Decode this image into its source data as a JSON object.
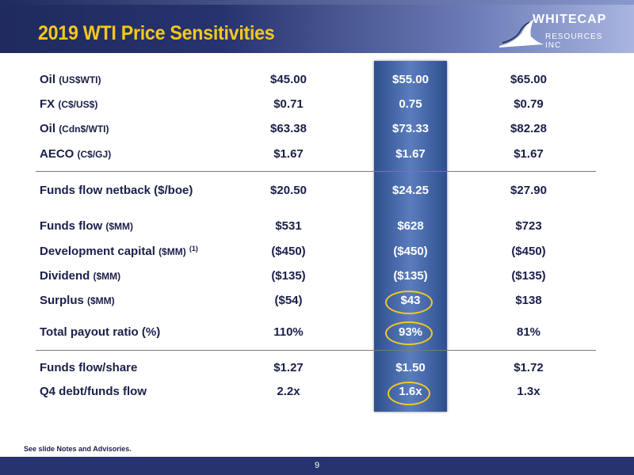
{
  "title": "2019 WTI Price Sensitivities",
  "logo": {
    "line1": "WHITECAP",
    "line2": "RESOURCES INC"
  },
  "rows": [
    {
      "label": "Oil",
      "unit": "(US$WTI)",
      "sup": "",
      "values": [
        "$45.00",
        "$55.00",
        "$65.00"
      ]
    },
    {
      "label": "FX",
      "unit": "(C$/US$)",
      "sup": "",
      "values": [
        "$0.71",
        "0.75",
        "$0.79"
      ]
    },
    {
      "label": "Oil",
      "unit": "(Cdn$/WTI)",
      "sup": "",
      "values": [
        "$63.38",
        "$73.33",
        "$82.28"
      ]
    },
    {
      "label": "AECO",
      "unit": "(C$/GJ)",
      "sup": "",
      "values": [
        "$1.67",
        "$1.67",
        "$1.67"
      ]
    },
    {
      "label": "Funds flow netback ($/boe)",
      "unit": "",
      "sup": "",
      "values": [
        "$20.50",
        "$24.25",
        "$27.90"
      ]
    },
    {
      "label": "Funds flow",
      "unit": "($MM)",
      "sup": "",
      "values": [
        "$531",
        "$628",
        "$723"
      ]
    },
    {
      "label": "Development capital",
      "unit": "($MM)",
      "sup": "(1)",
      "values": [
        "($450)",
        "($450)",
        "($450)"
      ]
    },
    {
      "label": "Dividend",
      "unit": "($MM)",
      "sup": "",
      "values": [
        "($135)",
        "($135)",
        "($135)"
      ]
    },
    {
      "label": "Surplus",
      "unit": "($MM)",
      "sup": "",
      "values": [
        "($54)",
        "$43",
        "$138"
      ]
    },
    {
      "label": "Total payout ratio (%)",
      "unit": "",
      "sup": "",
      "values": [
        "110%",
        "93%",
        "81%"
      ]
    },
    {
      "label": "Funds flow/share",
      "unit": "",
      "sup": "",
      "values": [
        "$1.27",
        "$1.50",
        "$1.72"
      ]
    },
    {
      "label": "Q4 debt/funds flow",
      "unit": "",
      "sup": "",
      "values": [
        "2.2x",
        "1.6x",
        "1.3x"
      ]
    }
  ],
  "footnote": "See slide Notes and Advisories.",
  "page_number": "9",
  "colors": {
    "title": "#f4c81d",
    "header": "#27336e",
    "highlight": "#4a6aaa",
    "circle": "#f4c81d"
  }
}
